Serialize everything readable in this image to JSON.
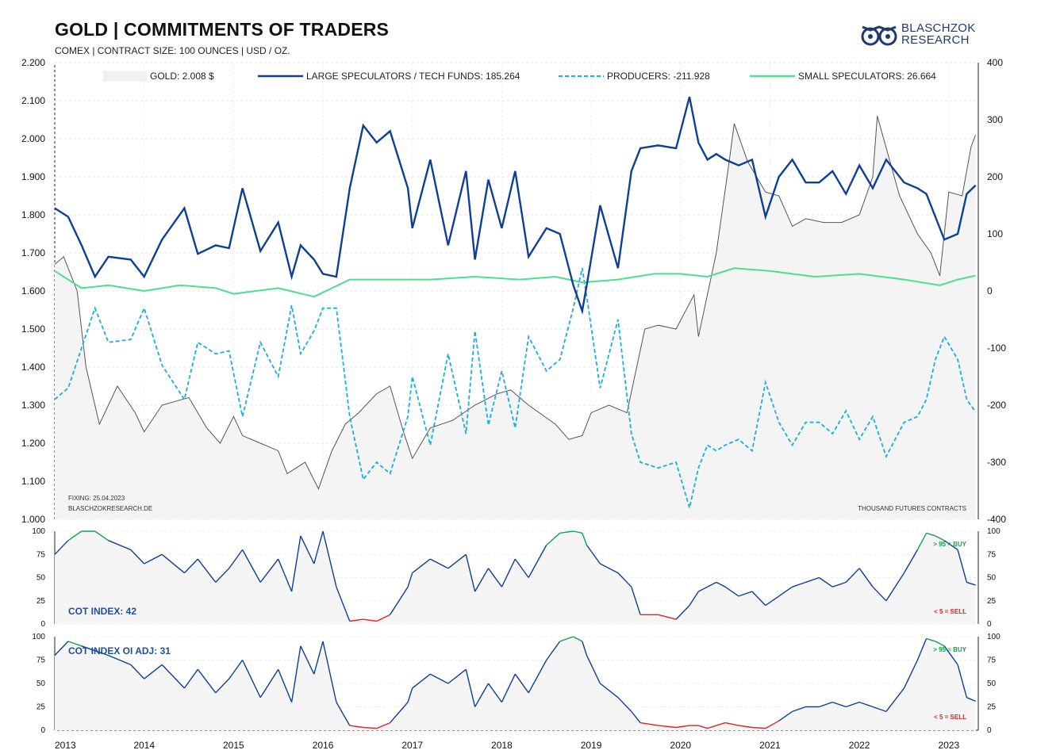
{
  "title": "GOLD | COMMITMENTS OF TRADERS",
  "subtitle": "COMEX | CONTRACT SIZE: 100 OUNCES | USD / OZ.",
  "logo": {
    "line1": "BLASCHZOK",
    "line2": "RESEARCH"
  },
  "notes": {
    "fixing": "FIXING: 25.04.2023",
    "source": "BLASCHZOKRESEARCH.DE",
    "units": "THOUSAND  FUTURES  CONTRACTS"
  },
  "colors": {
    "gold": "#555555",
    "large": "#0d3f96",
    "producers": "#1aaee0",
    "small": "#4ae08e",
    "buy": "#16a34a",
    "sell": "#dc2626",
    "cot": "#1f4e9e"
  },
  "chart_data": [
    {
      "type": "line",
      "x_labels": [
        "2013",
        "2014",
        "2015",
        "2016",
        "2017",
        "2018",
        "2019",
        "2020",
        "2021",
        "2022",
        "2023"
      ],
      "x_range": [
        2013.0,
        2023.33
      ],
      "left_axis": {
        "ticks": [
          "2.200",
          "2.100",
          "2.000",
          "1.900",
          "1.800",
          "1.700",
          "1.600",
          "1.500",
          "1.400",
          "1.300",
          "1.200",
          "1.100",
          "1.000"
        ],
        "ylim": [
          1000,
          2200
        ]
      },
      "right_axis": {
        "ticks": [
          "400",
          "300",
          "200",
          "100",
          "0",
          "-100",
          "-200",
          "-300",
          "-400"
        ],
        "ylim": [
          -400,
          400
        ]
      },
      "legend": [
        "GOLD: 2.008 $",
        "LARGE SPECULATORS / TECH FUNDS: 185.264",
        "PRODUCERS: -211.928",
        "SMALL SPECULATORS: 26.664"
      ],
      "series": [
        {
          "name": "GOLD: 2.008 $",
          "axis": "left",
          "x": [
            2013.0,
            2013.1,
            2013.25,
            2013.35,
            2013.5,
            2013.7,
            2013.9,
            2014.0,
            2014.2,
            2014.5,
            2014.7,
            2014.85,
            2015.0,
            2015.1,
            2015.3,
            2015.5,
            2015.6,
            2015.8,
            2015.95,
            2016.1,
            2016.25,
            2016.4,
            2016.6,
            2016.75,
            2016.9,
            2017.0,
            2017.2,
            2017.45,
            2017.7,
            2017.95,
            2018.1,
            2018.3,
            2018.6,
            2018.75,
            2018.9,
            2019.0,
            2019.2,
            2019.4,
            2019.6,
            2019.75,
            2019.95,
            2020.15,
            2020.2,
            2020.4,
            2020.55,
            2020.6,
            2020.75,
            2020.95,
            2021.1,
            2021.25,
            2021.4,
            2021.6,
            2021.8,
            2022.0,
            2022.15,
            2022.2,
            2022.45,
            2022.65,
            2022.8,
            2022.9,
            2023.0,
            2023.15,
            2023.25,
            2023.3
          ],
          "y": [
            1670,
            1690,
            1600,
            1400,
            1250,
            1350,
            1280,
            1230,
            1300,
            1320,
            1240,
            1200,
            1270,
            1220,
            1200,
            1180,
            1120,
            1150,
            1080,
            1180,
            1250,
            1280,
            1330,
            1350,
            1230,
            1160,
            1240,
            1260,
            1300,
            1330,
            1340,
            1300,
            1250,
            1210,
            1220,
            1280,
            1300,
            1280,
            1500,
            1510,
            1500,
            1590,
            1480,
            1700,
            1950,
            2040,
            1940,
            1860,
            1850,
            1770,
            1790,
            1780,
            1780,
            1800,
            1900,
            2060,
            1850,
            1750,
            1700,
            1640,
            1860,
            1850,
            1980,
            2010
          ]
        },
        {
          "name": "LARGE SPECULATORS / TECH FUNDS: 185.264",
          "axis": "right",
          "x": [
            2013.0,
            2013.15,
            2013.3,
            2013.45,
            2013.6,
            2013.85,
            2014.0,
            2014.2,
            2014.45,
            2014.6,
            2014.8,
            2014.95,
            2015.1,
            2015.3,
            2015.5,
            2015.65,
            2015.75,
            2015.9,
            2016.0,
            2016.15,
            2016.3,
            2016.45,
            2016.6,
            2016.75,
            2016.95,
            2017.0,
            2017.2,
            2017.4,
            2017.6,
            2017.7,
            2017.85,
            2018.0,
            2018.15,
            2018.3,
            2018.5,
            2018.65,
            2018.8,
            2018.9,
            2018.95,
            2019.1,
            2019.3,
            2019.45,
            2019.55,
            2019.75,
            2019.95,
            2020.1,
            2020.2,
            2020.3,
            2020.4,
            2020.5,
            2020.65,
            2020.8,
            2020.95,
            2021.1,
            2021.25,
            2021.4,
            2021.55,
            2021.7,
            2021.85,
            2022.0,
            2022.15,
            2022.3,
            2022.5,
            2022.65,
            2022.75,
            2022.85,
            2022.95,
            2023.1,
            2023.2,
            2023.3
          ],
          "y": [
            145,
            130,
            80,
            25,
            60,
            55,
            25,
            90,
            145,
            65,
            80,
            75,
            180,
            70,
            120,
            25,
            80,
            55,
            30,
            25,
            180,
            290,
            260,
            280,
            180,
            110,
            230,
            80,
            210,
            55,
            195,
            110,
            210,
            60,
            110,
            100,
            10,
            -35,
            10,
            150,
            40,
            210,
            250,
            255,
            250,
            340,
            260,
            230,
            240,
            230,
            220,
            230,
            130,
            200,
            230,
            190,
            190,
            210,
            170,
            220,
            180,
            230,
            190,
            180,
            170,
            130,
            90,
            100,
            170,
            185
          ]
        },
        {
          "name": "PRODUCERS: -211.928",
          "axis": "right",
          "x": [
            2013.0,
            2013.15,
            2013.3,
            2013.45,
            2013.6,
            2013.85,
            2014.0,
            2014.2,
            2014.45,
            2014.6,
            2014.8,
            2014.95,
            2015.1,
            2015.3,
            2015.5,
            2015.65,
            2015.75,
            2015.9,
            2016.0,
            2016.15,
            2016.3,
            2016.45,
            2016.6,
            2016.75,
            2016.95,
            2017.0,
            2017.2,
            2017.4,
            2017.6,
            2017.7,
            2017.85,
            2018.0,
            2018.15,
            2018.3,
            2018.5,
            2018.65,
            2018.8,
            2018.9,
            2018.95,
            2019.1,
            2019.3,
            2019.45,
            2019.55,
            2019.75,
            2019.95,
            2020.1,
            2020.2,
            2020.3,
            2020.4,
            2020.5,
            2020.65,
            2020.8,
            2020.95,
            2021.1,
            2021.25,
            2021.4,
            2021.55,
            2021.7,
            2021.85,
            2022.0,
            2022.15,
            2022.3,
            2022.5,
            2022.65,
            2022.75,
            2022.85,
            2022.95,
            2023.1,
            2023.2,
            2023.3
          ],
          "y": [
            -190,
            -170,
            -100,
            -30,
            -90,
            -85,
            -30,
            -130,
            -190,
            -90,
            -110,
            -105,
            -220,
            -90,
            -150,
            -25,
            -110,
            -70,
            -30,
            -30,
            -220,
            -330,
            -300,
            -320,
            -220,
            -150,
            -270,
            -110,
            -250,
            -70,
            -235,
            -140,
            -240,
            -80,
            -140,
            -120,
            -30,
            40,
            -10,
            -170,
            -50,
            -250,
            -300,
            -310,
            -300,
            -380,
            -310,
            -270,
            -280,
            -270,
            -260,
            -280,
            -160,
            -230,
            -270,
            -230,
            -230,
            -250,
            -210,
            -260,
            -220,
            -290,
            -230,
            -220,
            -190,
            -120,
            -80,
            -120,
            -190,
            -212
          ]
        },
        {
          "name": "SMALL SPECULATORS: 26.664",
          "axis": "right",
          "x": [
            2013.0,
            2013.3,
            2013.6,
            2014.0,
            2014.4,
            2014.8,
            2015.0,
            2015.5,
            2015.9,
            2016.3,
            2016.8,
            2017.2,
            2017.7,
            2018.2,
            2018.6,
            2018.9,
            2019.3,
            2019.7,
            2020.0,
            2020.3,
            2020.6,
            2021.0,
            2021.5,
            2022.0,
            2022.5,
            2022.9,
            2023.1,
            2023.3
          ],
          "y": [
            35,
            5,
            10,
            0,
            10,
            5,
            -5,
            5,
            -10,
            20,
            20,
            20,
            25,
            20,
            25,
            15,
            20,
            30,
            30,
            25,
            40,
            35,
            25,
            30,
            20,
            10,
            20,
            27
          ]
        }
      ]
    },
    {
      "type": "line",
      "name": "COT INDEX: 42",
      "ylim": [
        0,
        100
      ],
      "y_ticks": [
        "100",
        "75",
        "50",
        "25",
        "0"
      ],
      "thresholds": {
        "buy_label": "> 95 = BUY",
        "sell_label": "< 5 = SELL",
        "buy": 95,
        "sell": 5
      },
      "x": [
        2013.0,
        2013.15,
        2013.3,
        2013.45,
        2013.6,
        2013.85,
        2014.0,
        2014.2,
        2014.45,
        2014.6,
        2014.8,
        2014.95,
        2015.1,
        2015.3,
        2015.5,
        2015.65,
        2015.75,
        2015.9,
        2016.0,
        2016.15,
        2016.3,
        2016.45,
        2016.6,
        2016.75,
        2016.95,
        2017.0,
        2017.2,
        2017.4,
        2017.6,
        2017.7,
        2017.85,
        2018.0,
        2018.15,
        2018.3,
        2018.5,
        2018.65,
        2018.8,
        2018.9,
        2018.95,
        2019.1,
        2019.3,
        2019.45,
        2019.55,
        2019.75,
        2019.95,
        2020.1,
        2020.2,
        2020.3,
        2020.4,
        2020.5,
        2020.65,
        2020.8,
        2020.95,
        2021.1,
        2021.25,
        2021.4,
        2021.55,
        2021.7,
        2021.85,
        2022.0,
        2022.15,
        2022.3,
        2022.5,
        2022.65,
        2022.75,
        2022.85,
        2022.95,
        2023.1,
        2023.2,
        2023.3
      ],
      "y": [
        75,
        90,
        100,
        100,
        90,
        80,
        65,
        75,
        55,
        70,
        45,
        60,
        80,
        45,
        70,
        35,
        95,
        65,
        100,
        40,
        3,
        5,
        3,
        10,
        40,
        55,
        70,
        60,
        75,
        35,
        60,
        40,
        70,
        50,
        85,
        98,
        100,
        98,
        85,
        65,
        55,
        40,
        10,
        10,
        5,
        20,
        35,
        40,
        45,
        40,
        30,
        35,
        20,
        30,
        40,
        45,
        50,
        40,
        45,
        60,
        40,
        25,
        55,
        80,
        98,
        95,
        90,
        80,
        45,
        42
      ]
    },
    {
      "type": "line",
      "name": "COT INDEX OI ADJ: 31",
      "ylim": [
        0,
        100
      ],
      "y_ticks": [
        "100",
        "75",
        "50",
        "25",
        "0"
      ],
      "thresholds": {
        "buy_label": "> 95 = BUY",
        "sell_label": "< 5 = SELL",
        "buy": 95,
        "sell": 5
      },
      "x": [
        2013.0,
        2013.15,
        2013.3,
        2013.45,
        2013.6,
        2013.85,
        2014.0,
        2014.2,
        2014.45,
        2014.6,
        2014.8,
        2014.95,
        2015.1,
        2015.3,
        2015.5,
        2015.65,
        2015.75,
        2015.9,
        2016.0,
        2016.15,
        2016.3,
        2016.45,
        2016.6,
        2016.75,
        2016.95,
        2017.0,
        2017.2,
        2017.4,
        2017.6,
        2017.7,
        2017.85,
        2018.0,
        2018.15,
        2018.3,
        2018.5,
        2018.65,
        2018.8,
        2018.9,
        2018.95,
        2019.1,
        2019.3,
        2019.45,
        2019.55,
        2019.75,
        2019.95,
        2020.1,
        2020.2,
        2020.3,
        2020.4,
        2020.5,
        2020.65,
        2020.8,
        2020.95,
        2021.1,
        2021.25,
        2021.4,
        2021.55,
        2021.7,
        2021.85,
        2022.0,
        2022.15,
        2022.3,
        2022.5,
        2022.65,
        2022.75,
        2022.85,
        2022.95,
        2023.1,
        2023.2,
        2023.3
      ],
      "y": [
        80,
        95,
        90,
        85,
        80,
        70,
        55,
        70,
        45,
        65,
        40,
        55,
        75,
        35,
        65,
        30,
        90,
        60,
        95,
        30,
        5,
        3,
        2,
        8,
        30,
        45,
        60,
        50,
        65,
        25,
        50,
        30,
        60,
        40,
        75,
        95,
        100,
        95,
        80,
        50,
        35,
        20,
        8,
        5,
        3,
        5,
        5,
        2,
        5,
        8,
        5,
        3,
        2,
        10,
        20,
        25,
        25,
        30,
        25,
        30,
        25,
        20,
        45,
        75,
        98,
        95,
        90,
        70,
        35,
        31
      ]
    }
  ]
}
